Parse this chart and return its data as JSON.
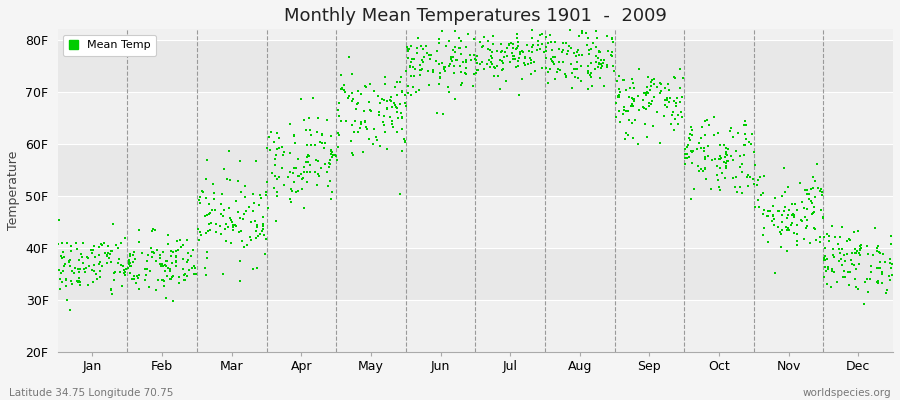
{
  "title": "Monthly Mean Temperatures 1901  -  2009",
  "ylabel": "Temperature",
  "xlabel_labels": [
    "Jan",
    "Feb",
    "Mar",
    "Apr",
    "May",
    "Jun",
    "Jul",
    "Aug",
    "Sep",
    "Oct",
    "Nov",
    "Dec"
  ],
  "ytick_labels": [
    "20F",
    "30F",
    "40F",
    "50F",
    "60F",
    "70F",
    "80F"
  ],
  "ytick_values": [
    20,
    30,
    40,
    50,
    60,
    70,
    80
  ],
  "ylim": [
    20,
    82
  ],
  "legend_label": "Mean Temp",
  "dot_color": "#00cc00",
  "dot_size": 2.5,
  "background_color": "#f5f5f5",
  "plot_bg_bands": [
    "#f0f0f0",
    "#e8e8e8"
  ],
  "footer_left": "Latitude 34.75 Longitude 70.75",
  "footer_right": "worldspecies.org",
  "monthly_means": [
    36.5,
    36.5,
    46,
    57,
    66,
    75,
    77.5,
    76,
    68,
    58,
    47,
    37.5
  ],
  "monthly_stds": [
    3.2,
    3.2,
    4.5,
    4.5,
    4.5,
    3.2,
    2.8,
    2.8,
    3.5,
    4.0,
    4.2,
    3.2
  ],
  "n_years": 109,
  "seed": 42,
  "xlim_start": 0,
  "xlim_end": 12
}
